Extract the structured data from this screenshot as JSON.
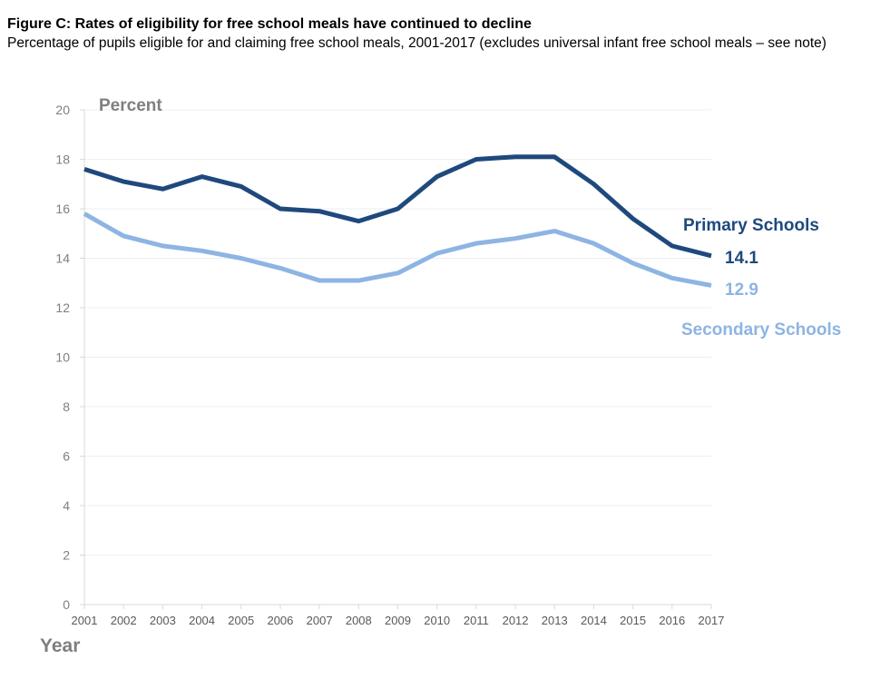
{
  "header": {
    "title": "Figure C: Rates of eligibility for free school meals have continued to decline",
    "subtitle": "Percentage of pupils eligible for and claiming free school meals, 2001-2017 (excludes universal infant free school meals – see note)"
  },
  "chart_data": {
    "type": "line",
    "title": "Figure C: Rates of eligibility for free school meals have continued to decline",
    "subtitle": "Percentage of pupils eligible for and claiming free school meals, 2001-2017 (excludes universal infant free school meals – see note)",
    "xlabel": "Year",
    "ylabel": "Percent",
    "ylim": [
      0,
      20
    ],
    "yticks": [
      "0",
      "2",
      "4",
      "6",
      "8",
      "10",
      "12",
      "14",
      "16",
      "18",
      "20"
    ],
    "x": [
      "2001",
      "2002",
      "2003",
      "2004",
      "2005",
      "2006",
      "2007",
      "2008",
      "2009",
      "2010",
      "2011",
      "2012",
      "2013",
      "2014",
      "2015",
      "2016",
      "2017"
    ],
    "grid": "horizontal",
    "legend": "inline labels at right",
    "series": [
      {
        "name": "Primary Schools",
        "color": "#1f497d",
        "end_label": "14.1",
        "values": [
          17.6,
          17.1,
          16.8,
          17.3,
          16.9,
          16.0,
          15.9,
          15.5,
          16.0,
          17.3,
          18.0,
          18.1,
          18.1,
          17.0,
          15.6,
          14.5,
          14.1
        ]
      },
      {
        "name": "Secondary Schools",
        "color": "#8eb4e3",
        "end_label": "12.9",
        "values": [
          15.8,
          14.9,
          14.5,
          14.3,
          14.0,
          13.6,
          13.1,
          13.1,
          13.4,
          14.2,
          14.6,
          14.8,
          15.1,
          14.6,
          13.8,
          13.2,
          12.9
        ]
      }
    ]
  }
}
